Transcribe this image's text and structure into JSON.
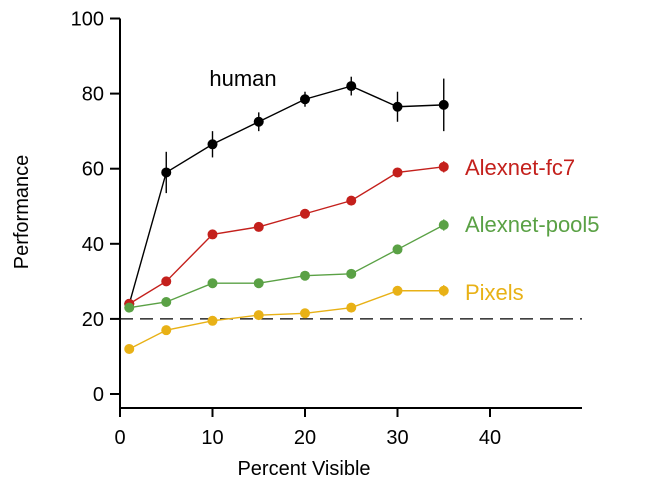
{
  "chart_data": {
    "type": "line",
    "xlabel": "Percent Visible",
    "ylabel": "Performance",
    "xlim": [
      0,
      50
    ],
    "ylim": [
      0,
      100
    ],
    "xticks": [
      0,
      10,
      20,
      30,
      40
    ],
    "yticks": [
      0,
      20,
      40,
      60,
      80,
      100
    ],
    "grid": false,
    "reference_line": {
      "y": 20,
      "style": "dashed",
      "color": "#000000"
    },
    "series": [
      {
        "name": "human",
        "color": "#000000",
        "x": [
          1,
          5,
          10,
          15,
          20,
          25,
          30,
          35
        ],
        "y": [
          24,
          59,
          66.5,
          72.5,
          78.5,
          82,
          76.5,
          77
        ],
        "err": [
          1,
          5.5,
          3.5,
          2.5,
          2,
          2.5,
          4,
          7
        ]
      },
      {
        "name": "Alexnet-fc7",
        "color": "#c4201c",
        "x": [
          1,
          5,
          10,
          15,
          20,
          25,
          30,
          35
        ],
        "y": [
          24,
          30,
          42.5,
          44.5,
          48,
          51.5,
          59,
          60.5
        ],
        "err": [
          0,
          0,
          0,
          0,
          0,
          0,
          0,
          1.5
        ]
      },
      {
        "name": "Alexnet-pool5",
        "color": "#5aa145",
        "x": [
          1,
          5,
          10,
          15,
          20,
          25,
          30,
          35
        ],
        "y": [
          23,
          24.5,
          29.5,
          29.5,
          31.5,
          32,
          38.5,
          45
        ],
        "err": [
          0,
          0,
          0,
          0,
          0,
          0,
          0,
          1.5
        ]
      },
      {
        "name": "Pixels",
        "color": "#e8b116",
        "x": [
          1,
          5,
          10,
          15,
          20,
          25,
          30,
          35
        ],
        "y": [
          12,
          17,
          19.5,
          21,
          21.5,
          23,
          27.5,
          27.5
        ],
        "err": [
          0,
          0,
          0,
          0,
          0,
          0,
          0,
          1.5
        ]
      }
    ]
  }
}
